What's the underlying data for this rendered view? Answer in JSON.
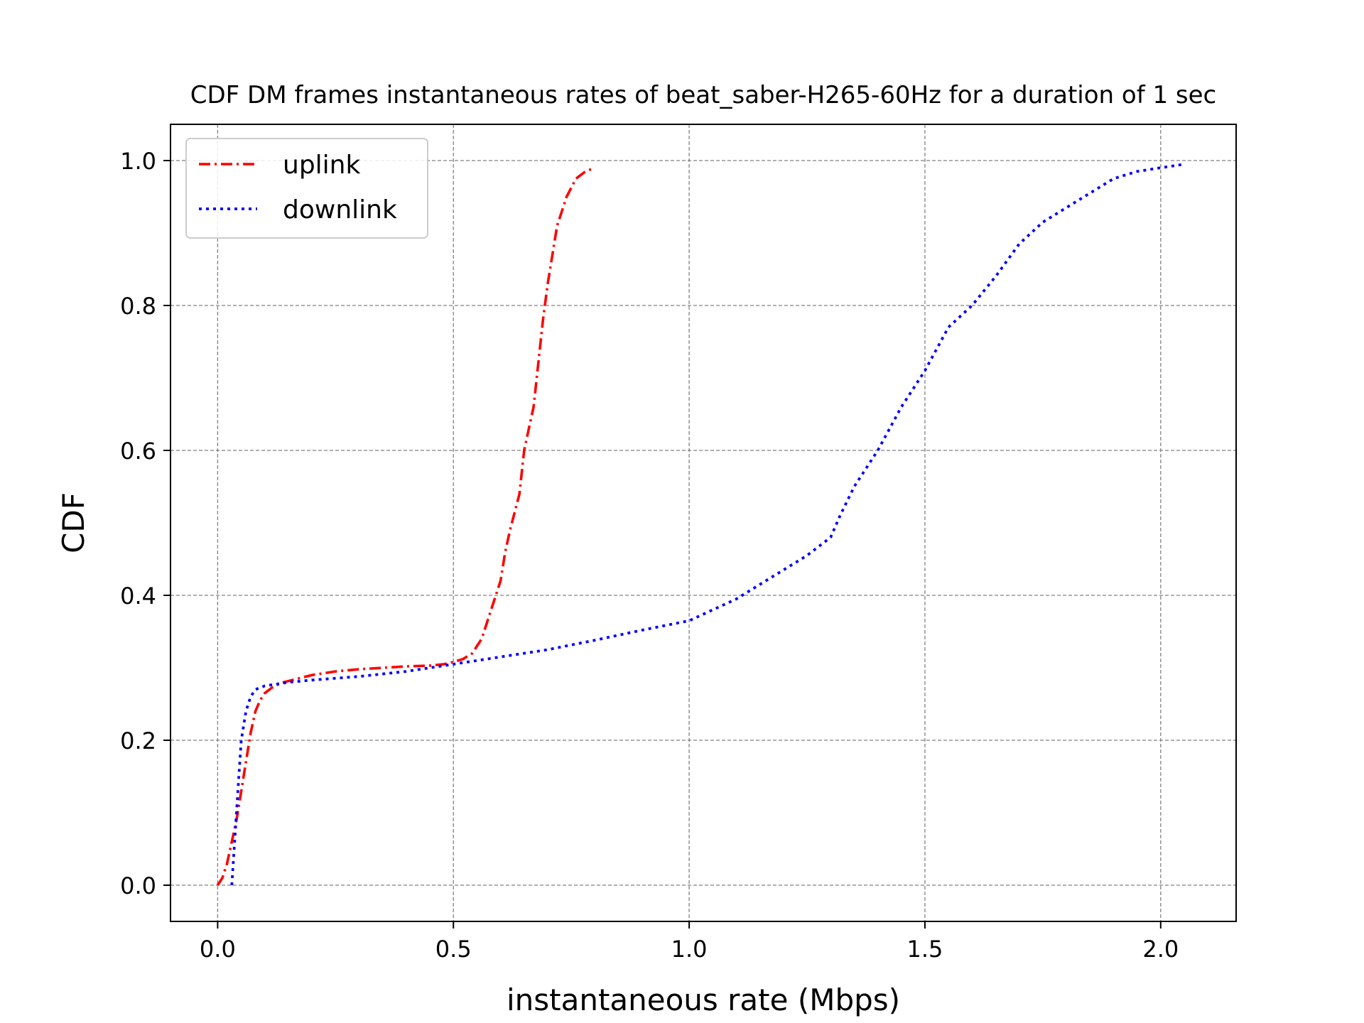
{
  "chart_data": {
    "type": "line",
    "title": "CDF DM frames instantaneous rates of beat_saber-H265-60Hz for a duration of 1 sec",
    "xlabel": "instantaneous rate (Mbps)",
    "ylabel": "CDF",
    "xlim": [
      -0.1,
      2.16
    ],
    "ylim": [
      -0.05,
      1.05
    ],
    "xticks": [
      0.0,
      0.5,
      1.0,
      1.5,
      2.0
    ],
    "xtick_labels": [
      "0.0",
      "0.5",
      "1.0",
      "1.5",
      "2.0"
    ],
    "yticks": [
      0.0,
      0.2,
      0.4,
      0.6,
      0.8,
      1.0
    ],
    "ytick_labels": [
      "0.0",
      "0.2",
      "0.4",
      "0.6",
      "0.8",
      "1.0"
    ],
    "grid": true,
    "legend_position": "upper-left",
    "series": [
      {
        "name": "uplink",
        "color": "#ff0000",
        "style": "dashdot",
        "x": [
          0.0,
          0.01,
          0.02,
          0.03,
          0.04,
          0.05,
          0.06,
          0.07,
          0.08,
          0.09,
          0.1,
          0.12,
          0.14,
          0.17,
          0.2,
          0.25,
          0.3,
          0.35,
          0.4,
          0.45,
          0.48,
          0.5,
          0.52,
          0.54,
          0.56,
          0.58,
          0.6,
          0.61,
          0.62,
          0.64,
          0.65,
          0.66,
          0.67,
          0.68,
          0.69,
          0.7,
          0.71,
          0.72,
          0.73,
          0.74,
          0.76,
          0.78,
          0.8
        ],
        "y": [
          0.0,
          0.01,
          0.03,
          0.06,
          0.09,
          0.13,
          0.17,
          0.21,
          0.24,
          0.255,
          0.265,
          0.275,
          0.28,
          0.285,
          0.29,
          0.295,
          0.298,
          0.3,
          0.302,
          0.303,
          0.305,
          0.308,
          0.312,
          0.32,
          0.34,
          0.38,
          0.42,
          0.46,
          0.49,
          0.54,
          0.6,
          0.63,
          0.66,
          0.72,
          0.78,
          0.83,
          0.87,
          0.91,
          0.93,
          0.95,
          0.975,
          0.985,
          0.99
        ]
      },
      {
        "name": "downlink",
        "color": "#0000ff",
        "style": "dotted",
        "x": [
          0.03,
          0.035,
          0.04,
          0.045,
          0.05,
          0.06,
          0.07,
          0.08,
          0.1,
          0.15,
          0.2,
          0.3,
          0.4,
          0.5,
          0.6,
          0.7,
          0.8,
          0.85,
          0.9,
          1.0,
          1.05,
          1.1,
          1.15,
          1.2,
          1.25,
          1.3,
          1.32,
          1.35,
          1.4,
          1.45,
          1.5,
          1.55,
          1.6,
          1.65,
          1.7,
          1.75,
          1.8,
          1.85,
          1.9,
          1.95,
          2.0,
          2.05
        ],
        "y": [
          0.0,
          0.05,
          0.1,
          0.15,
          0.2,
          0.24,
          0.26,
          0.27,
          0.275,
          0.28,
          0.283,
          0.288,
          0.295,
          0.305,
          0.315,
          0.325,
          0.338,
          0.345,
          0.352,
          0.365,
          0.38,
          0.395,
          0.415,
          0.435,
          0.455,
          0.48,
          0.51,
          0.55,
          0.6,
          0.66,
          0.71,
          0.77,
          0.8,
          0.84,
          0.885,
          0.915,
          0.935,
          0.955,
          0.975,
          0.985,
          0.99,
          0.995
        ]
      }
    ]
  }
}
